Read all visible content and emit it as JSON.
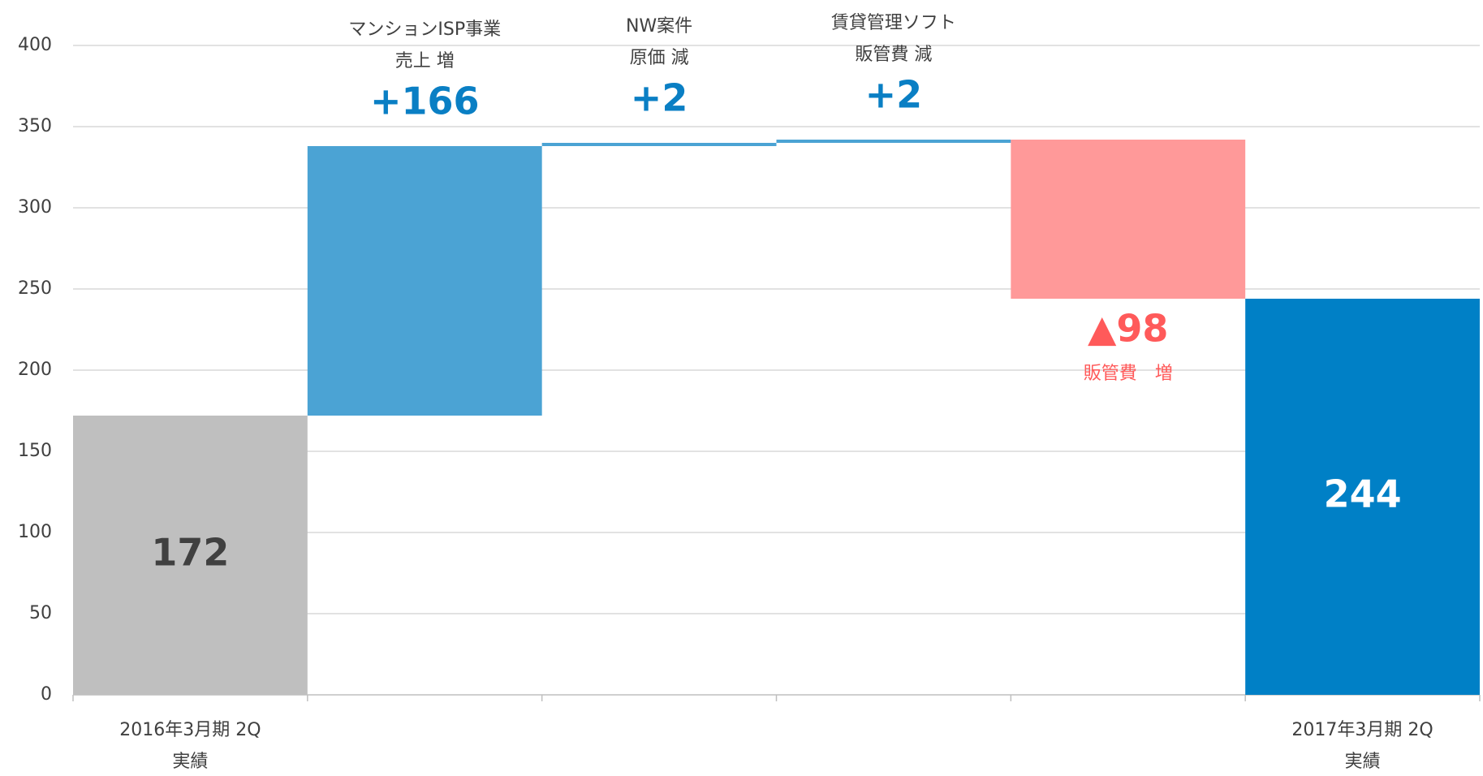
{
  "chart_data": {
    "type": "waterfall",
    "categories": [
      [
        "2016年3月期 2Q",
        "実績"
      ],
      null,
      null,
      null,
      null,
      [
        "2017年3月期 2Q",
        "実績"
      ]
    ],
    "measures": [
      "absolute",
      "relative",
      "relative",
      "relative",
      "relative",
      "total"
    ],
    "values": [
      172,
      166,
      2,
      2,
      -98,
      244
    ],
    "value_labels": [
      "172",
      "+166",
      "+2",
      "+2",
      "▲98",
      "244"
    ],
    "notes": [
      null,
      [
        "マンションISP事業",
        "売上 増"
      ],
      [
        "NW案件",
        "原価 減"
      ],
      [
        "賃貸管理ソフト",
        "販管費 減"
      ],
      [
        "販管費　増"
      ],
      null
    ],
    "colors": [
      "#bfbfbf",
      "#4ba3d4",
      "#4ba3d4",
      "#4ba3d4",
      "#ff9999",
      "#0080c6"
    ],
    "value_label_colors": [
      "#404040",
      "#0a7fc4",
      "#0a7fc4",
      "#0a7fc4",
      "#ff5a5a",
      "#ffffff"
    ],
    "ylim": [
      0,
      400
    ],
    "yticks": [
      0,
      50,
      100,
      150,
      200,
      250,
      300,
      350,
      400
    ],
    "grid": true
  }
}
